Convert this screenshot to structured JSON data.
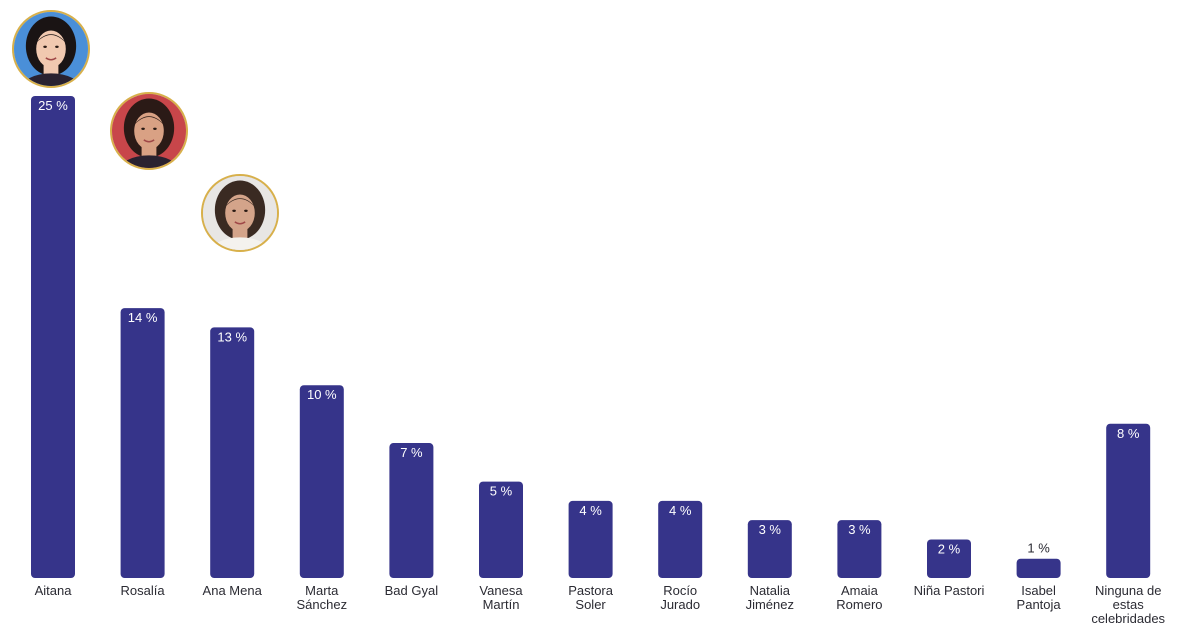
{
  "chart_data": {
    "type": "bar",
    "categories": [
      "Aitana",
      "Rosalía",
      "Ana Mena",
      "Marta\nSánchez",
      "Bad Gyal",
      "Vanesa\nMartín",
      "Pastora\nSoler",
      "Rocío\nJurado",
      "Natalia\nJiménez",
      "Amaia\nRomero",
      "Niña Pastori",
      "Isabel\nPantoja",
      "Ninguna de\nestas\ncelebridades"
    ],
    "values": [
      25,
      14,
      13,
      10,
      7,
      5,
      4,
      4,
      3,
      3,
      2,
      1,
      8
    ],
    "value_labels": [
      "25 %",
      "14 %",
      "13 %",
      "10 %",
      "7 %",
      "5 %",
      "4 %",
      "4 %",
      "3 %",
      "3 %",
      "2 %",
      "1 %",
      "8 %"
    ],
    "title": "",
    "xlabel": "",
    "ylabel": "",
    "ylim": [
      0,
      25
    ],
    "grid": false,
    "legend": "none",
    "bar_color": "#36348a",
    "label_color_inside": "#ffffff",
    "label_color_outside": "#2b2b33",
    "avatars": [
      {
        "category_index": 0,
        "name": "avatar-aitana",
        "bg": "#4a8fd8",
        "skin": "#f1c9b0",
        "hair": "#1a1414"
      },
      {
        "category_index": 1,
        "name": "avatar-rosalia",
        "bg": "#c8464a",
        "skin": "#d9a184",
        "hair": "#2b1a16"
      },
      {
        "category_index": 2,
        "name": "avatar-ana-mena",
        "bg": "#e8e6e4",
        "skin": "#d4a48a",
        "hair": "#3a2a22"
      }
    ]
  }
}
